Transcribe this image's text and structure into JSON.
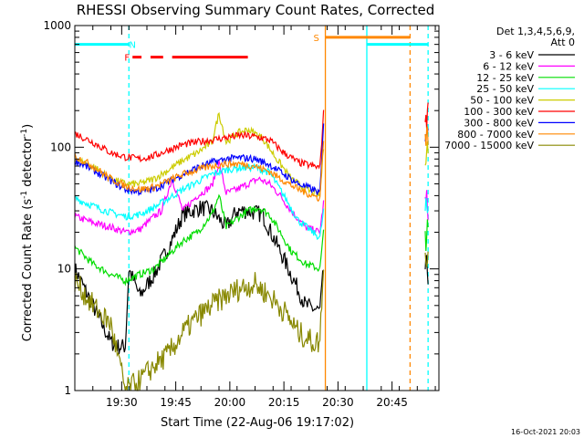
{
  "chart_data": {
    "type": "line",
    "title": "RHESSI Observing Summary Count Rates, Corrected",
    "xlabel": "Start Time (22-Aug-06 19:17:02)",
    "ylabel_html": "Corrected Count Rate (s⁻¹ detector⁻¹)",
    "x_range_minutes": [
      0,
      101
    ],
    "x_ticks": [
      {
        "label": "19:30",
        "t": 13
      },
      {
        "label": "19:45",
        "t": 28
      },
      {
        "label": "20:00",
        "t": 43
      },
      {
        "label": "20:15",
        "t": 58
      },
      {
        "label": "20:30",
        "t": 73
      },
      {
        "label": "20:45",
        "t": 88
      }
    ],
    "y_scale": "log",
    "ylim": [
      1,
      1000
    ],
    "y_ticks": [
      {
        "label": "1",
        "v": 1
      },
      {
        "label": "10",
        "v": 10
      },
      {
        "label": "100",
        "v": 100
      },
      {
        "label": "1000",
        "v": 1000
      }
    ],
    "legend_header": [
      "Det 1,3,4,5,6,9,",
      "Att 0"
    ],
    "legend_position": "right",
    "series": [
      {
        "name": "3 - 6 keV",
        "color": "#000000",
        "points": [
          [
            0,
            10
          ],
          [
            5,
            5
          ],
          [
            10,
            2.5
          ],
          [
            12,
            2.3
          ],
          [
            14,
            2.3
          ],
          [
            15,
            10
          ],
          [
            18,
            6
          ],
          [
            22,
            9
          ],
          [
            26,
            15
          ],
          [
            30,
            28
          ],
          [
            35,
            32
          ],
          [
            38,
            30
          ],
          [
            42,
            22
          ],
          [
            45,
            30
          ],
          [
            48,
            30
          ],
          [
            52,
            28
          ],
          [
            56,
            16
          ],
          [
            60,
            9
          ],
          [
            64,
            5
          ],
          [
            68,
            4.5
          ],
          [
            69,
            10
          ]
        ]
      },
      {
        "name": "6 - 12 keV",
        "color": "#ff00ff",
        "points": [
          [
            0,
            27
          ],
          [
            5,
            24
          ],
          [
            10,
            22
          ],
          [
            14,
            20
          ],
          [
            18,
            21
          ],
          [
            22,
            27
          ],
          [
            24,
            30
          ],
          [
            27,
            55
          ],
          [
            30,
            30
          ],
          [
            34,
            40
          ],
          [
            38,
            48
          ],
          [
            40,
            75
          ],
          [
            42,
            42
          ],
          [
            45,
            45
          ],
          [
            48,
            50
          ],
          [
            51,
            55
          ],
          [
            54,
            50
          ],
          [
            57,
            40
          ],
          [
            60,
            30
          ],
          [
            64,
            22
          ],
          [
            68,
            20
          ],
          [
            69,
            35
          ]
        ]
      },
      {
        "name": "12 - 25 keV",
        "color": "#00dd00",
        "points": [
          [
            0,
            15
          ],
          [
            5,
            11
          ],
          [
            10,
            9
          ],
          [
            14,
            8
          ],
          [
            18,
            9
          ],
          [
            22,
            10
          ],
          [
            26,
            13
          ],
          [
            30,
            17
          ],
          [
            34,
            20
          ],
          [
            38,
            28
          ],
          [
            40,
            40
          ],
          [
            42,
            22
          ],
          [
            45,
            26
          ],
          [
            48,
            30
          ],
          [
            51,
            32
          ],
          [
            54,
            28
          ],
          [
            57,
            20
          ],
          [
            60,
            14
          ],
          [
            64,
            11
          ],
          [
            68,
            10
          ],
          [
            69,
            20
          ]
        ]
      },
      {
        "name": "25 - 50 keV",
        "color": "#00ffff",
        "points": [
          [
            0,
            38
          ],
          [
            5,
            33
          ],
          [
            10,
            29
          ],
          [
            14,
            27
          ],
          [
            18,
            28
          ],
          [
            22,
            32
          ],
          [
            26,
            38
          ],
          [
            30,
            45
          ],
          [
            34,
            52
          ],
          [
            38,
            60
          ],
          [
            42,
            65
          ],
          [
            46,
            68
          ],
          [
            50,
            68
          ],
          [
            54,
            62
          ],
          [
            58,
            40
          ],
          [
            62,
            25
          ],
          [
            66,
            20
          ],
          [
            68,
            18
          ],
          [
            69,
            30
          ]
        ]
      },
      {
        "name": "50 - 100 keV",
        "color": "#cccc00",
        "points": [
          [
            0,
            80
          ],
          [
            5,
            70
          ],
          [
            10,
            55
          ],
          [
            14,
            50
          ],
          [
            18,
            50
          ],
          [
            22,
            55
          ],
          [
            26,
            65
          ],
          [
            30,
            78
          ],
          [
            34,
            90
          ],
          [
            38,
            110
          ],
          [
            40,
            190
          ],
          [
            42,
            110
          ],
          [
            45,
            130
          ],
          [
            48,
            140
          ],
          [
            52,
            120
          ],
          [
            56,
            80
          ],
          [
            60,
            55
          ],
          [
            64,
            45
          ],
          [
            68,
            40
          ],
          [
            69,
            100
          ]
        ]
      },
      {
        "name": "100 - 300 keV",
        "color": "#ff0000",
        "points": [
          [
            0,
            130
          ],
          [
            5,
            110
          ],
          [
            10,
            90
          ],
          [
            14,
            83
          ],
          [
            18,
            80
          ],
          [
            22,
            85
          ],
          [
            26,
            95
          ],
          [
            30,
            105
          ],
          [
            34,
            110
          ],
          [
            38,
            115
          ],
          [
            42,
            120
          ],
          [
            46,
            125
          ],
          [
            50,
            122
          ],
          [
            54,
            115
          ],
          [
            58,
            90
          ],
          [
            62,
            75
          ],
          [
            66,
            70
          ],
          [
            68,
            68
          ],
          [
            69,
            190
          ]
        ]
      },
      {
        "name": "300 - 800 keV",
        "color": "#0000ff",
        "points": [
          [
            0,
            78
          ],
          [
            5,
            65
          ],
          [
            10,
            53
          ],
          [
            14,
            45
          ],
          [
            18,
            43
          ],
          [
            22,
            45
          ],
          [
            26,
            52
          ],
          [
            30,
            60
          ],
          [
            34,
            68
          ],
          [
            38,
            75
          ],
          [
            42,
            80
          ],
          [
            46,
            82
          ],
          [
            50,
            80
          ],
          [
            54,
            72
          ],
          [
            58,
            60
          ],
          [
            62,
            50
          ],
          [
            66,
            45
          ],
          [
            68,
            42
          ],
          [
            69,
            150
          ]
        ]
      },
      {
        "name": "800 - 7000 keV",
        "color": "#ff8800",
        "points": [
          [
            0,
            85
          ],
          [
            5,
            70
          ],
          [
            10,
            55
          ],
          [
            14,
            48
          ],
          [
            18,
            45
          ],
          [
            22,
            47
          ],
          [
            26,
            53
          ],
          [
            30,
            60
          ],
          [
            34,
            65
          ],
          [
            38,
            70
          ],
          [
            42,
            73
          ],
          [
            46,
            73
          ],
          [
            50,
            70
          ],
          [
            54,
            63
          ],
          [
            58,
            53
          ],
          [
            62,
            45
          ],
          [
            66,
            40
          ],
          [
            68,
            38
          ],
          [
            69,
            120
          ]
        ]
      },
      {
        "name": "7000 - 15000 keV",
        "color": "#888800",
        "points": [
          [
            0,
            8
          ],
          [
            5,
            5
          ],
          [
            10,
            3.5
          ],
          [
            14,
            1
          ],
          [
            18,
            1.2
          ],
          [
            22,
            1.6
          ],
          [
            26,
            2
          ],
          [
            30,
            3
          ],
          [
            34,
            4
          ],
          [
            38,
            5
          ],
          [
            42,
            6
          ],
          [
            46,
            7
          ],
          [
            50,
            7.5
          ],
          [
            54,
            6
          ],
          [
            58,
            4.5
          ],
          [
            62,
            3
          ],
          [
            66,
            2.5
          ],
          [
            68,
            2.5
          ],
          [
            69,
            12
          ]
        ]
      }
    ],
    "flags": [
      {
        "label": "N",
        "color": "#00ffff",
        "level": 700,
        "start": 0,
        "end": 15,
        "label_t": 16
      },
      {
        "label": "F",
        "color": "#ff0000",
        "level": 550,
        "start": 16,
        "end": 48,
        "label_t": 14.5,
        "segments": [
          [
            16,
            18.5
          ],
          [
            21,
            24.5
          ],
          [
            27,
            48
          ]
        ]
      },
      {
        "label": "S",
        "color": "#ff8800",
        "level": 800,
        "start": 69.5,
        "end": 93,
        "label_t": 67
      },
      {
        "label": "",
        "color": "#00ffff",
        "level": 700,
        "start": 81,
        "end": 98
      }
    ],
    "markers": [
      {
        "t": 15,
        "color": "#00ffff",
        "style": "dashed"
      },
      {
        "t": 69.5,
        "color": "#ff8800",
        "style": "solid"
      },
      {
        "t": 81,
        "color": "#00ffff",
        "style": "solid"
      },
      {
        "t": 93,
        "color": "#ff8800",
        "style": "dashed"
      },
      {
        "t": 98,
        "color": "#00ffff",
        "style": "dashed"
      }
    ],
    "timestamp": "16-Oct-2021 20:03"
  }
}
